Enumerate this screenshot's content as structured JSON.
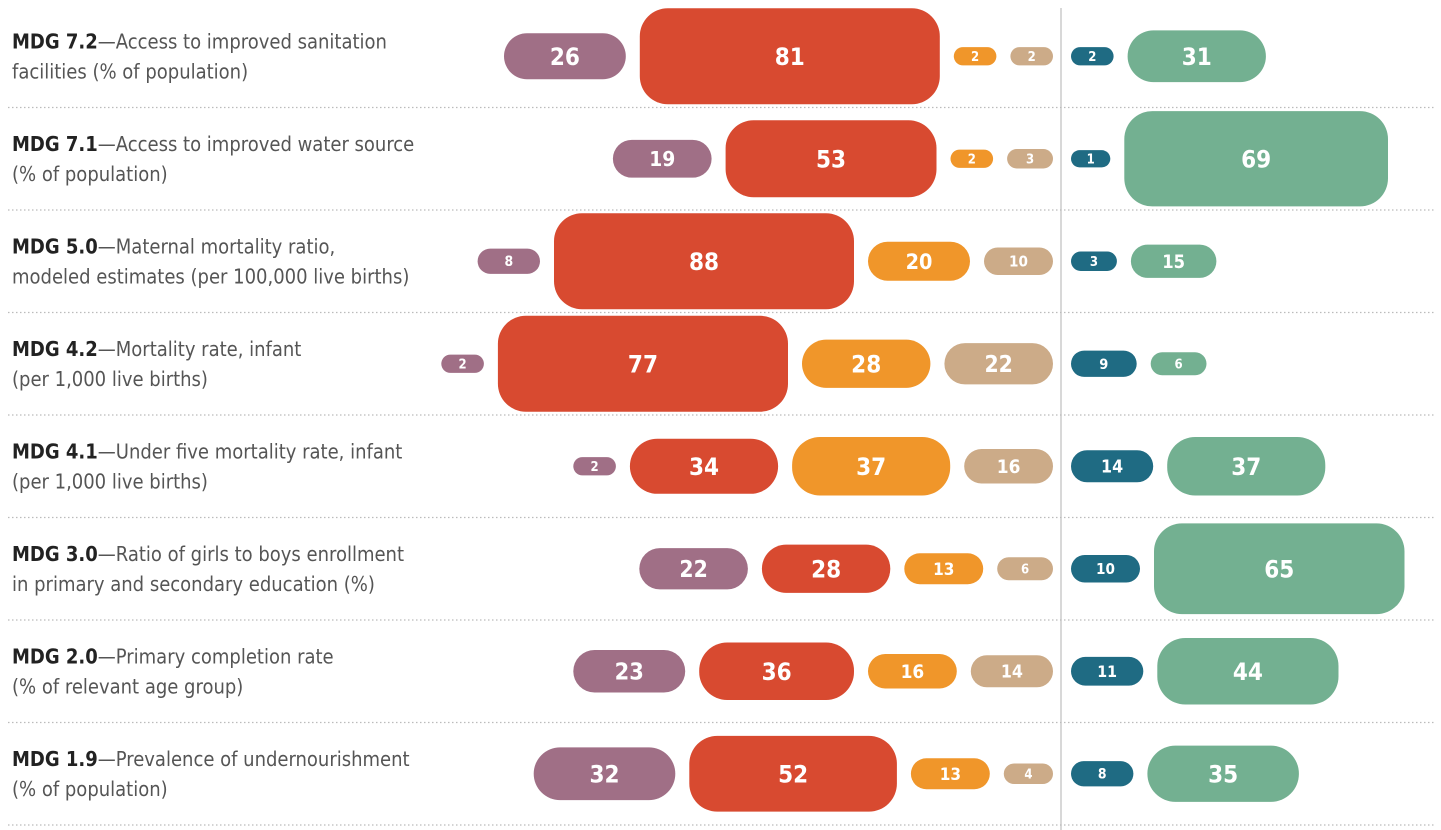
{
  "chart_data": {
    "type": "bar",
    "colors": {
      "mauve": "#a06f86",
      "red": "#d84a30",
      "orange": "#f0962a",
      "tan": "#ccab88",
      "teal": "#1f6b83",
      "green": "#73b091",
      "separator": "#bbbbbb",
      "divider": "#cccccc",
      "code_text": "#222222",
      "desc_text": "#555555"
    },
    "rows": [
      {
        "code": "MDG 7.2",
        "desc1": "—Access to improved sanitation",
        "desc2": "facilities (% of population)",
        "values": [
          26,
          81,
          2,
          2,
          2,
          31
        ]
      },
      {
        "code": "MDG 7.1",
        "desc1": "—Access to improved water source",
        "desc2": "(% of population)",
        "values": [
          19,
          53,
          2,
          3,
          1,
          69
        ]
      },
      {
        "code": "MDG 5.0",
        "desc1": "—Maternal mortality ratio,",
        "desc2": "modeled estimates (per 100,000 live births)",
        "values": [
          8,
          88,
          20,
          10,
          3,
          15
        ]
      },
      {
        "code": "MDG 4.2",
        "desc1": "—Mortality rate, infant",
        "desc2": "(per 1,000 live births)",
        "values": [
          2,
          77,
          28,
          22,
          9,
          6
        ]
      },
      {
        "code": "MDG 4.1",
        "desc1": "—Under five mortality rate, infant",
        "desc2": "(per 1,000 live births)",
        "values": [
          2,
          34,
          37,
          16,
          14,
          37
        ]
      },
      {
        "code": "MDG 3.0",
        "desc1": "—Ratio of girls to boys enrollment",
        "desc2": "in primary and secondary education (%)",
        "values": [
          22,
          28,
          13,
          6,
          10,
          65
        ]
      },
      {
        "code": "MDG 2.0",
        "desc1": "—Primary completion rate",
        "desc2": "(% of relevant age group)",
        "values": [
          23,
          36,
          16,
          14,
          11,
          44
        ]
      },
      {
        "code": "MDG 1.9",
        "desc1": "—Prevalence of undernourishment",
        "desc2": "(% of population)",
        "values": [
          32,
          52,
          13,
          4,
          8,
          35
        ]
      }
    ]
  }
}
